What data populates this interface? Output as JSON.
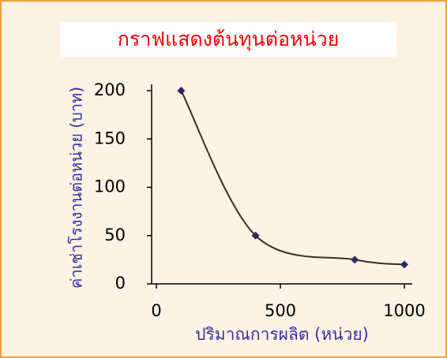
{
  "chart_data": {
    "type": "line",
    "title": "กราฟแสดงต้นทุนต่อหน่วย",
    "x_label": "ปริมาณการผลิต (หน่วย)",
    "y_label": "ค่าเช่าโรงงานต่อหน่วย (บาท)",
    "x": [
      100,
      400,
      800,
      1000
    ],
    "series": [
      {
        "color": "#3a2e1e",
        "marker_color": "#2b2a5e",
        "values": [
          200,
          50,
          25,
          20
        ]
      }
    ],
    "xlim": [
      0,
      1000
    ],
    "xticks": [
      0,
      500,
      1000
    ],
    "ylim": [
      0,
      200
    ],
    "yticks": [
      0,
      50,
      100,
      150,
      200
    ],
    "smooth": true
  }
}
